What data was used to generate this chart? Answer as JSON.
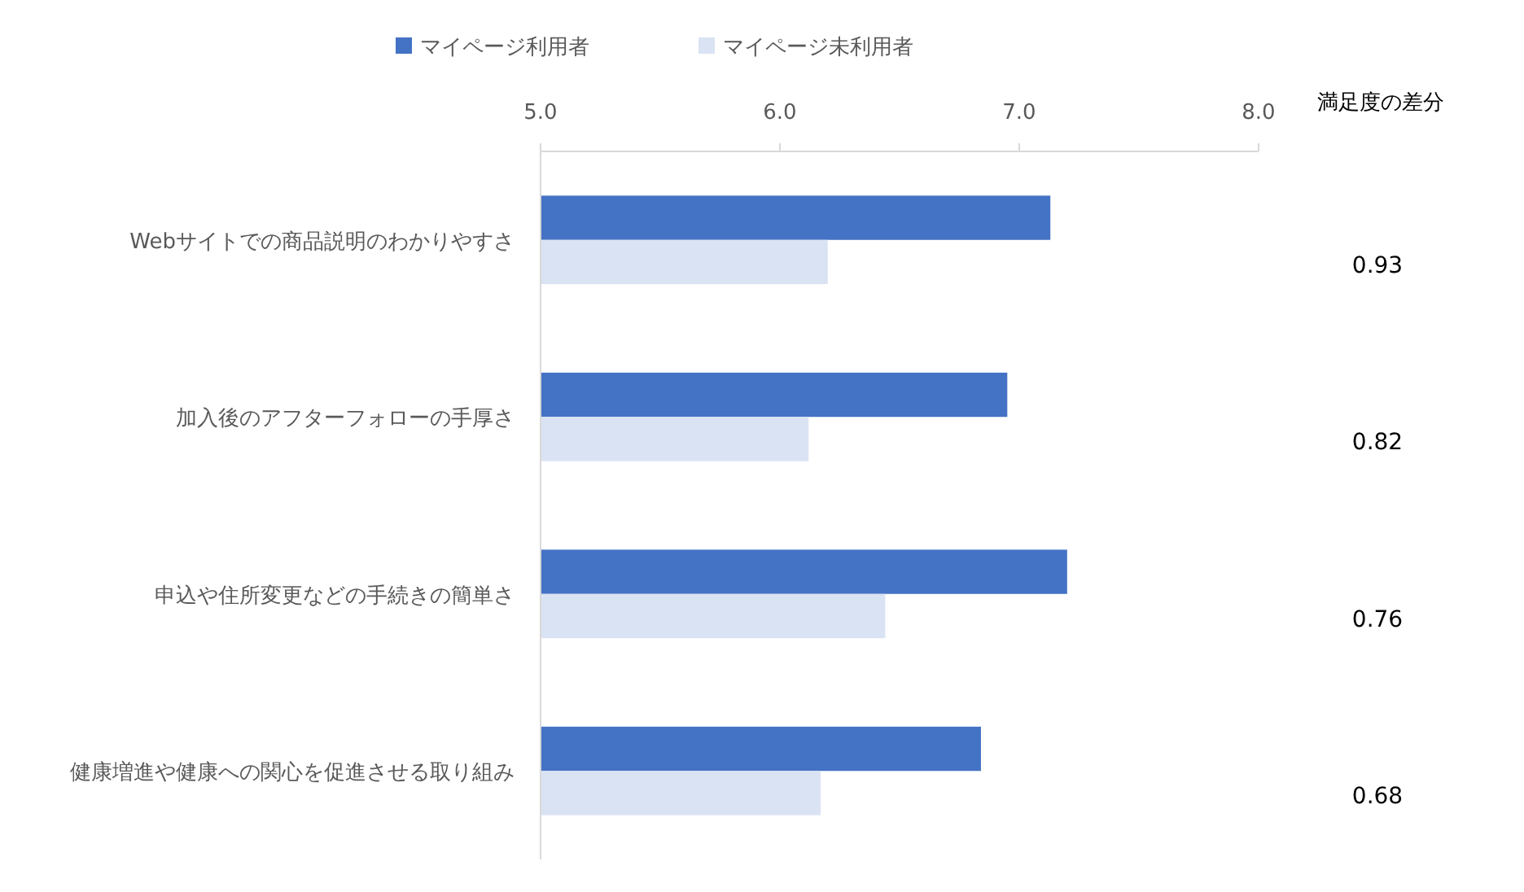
{
  "chart_data": {
    "type": "bar",
    "orientation": "horizontal",
    "categories": [
      "Webサイトでの商品説明のわかりやすさ",
      "加入後のアフターフォローの手厚さ",
      "申込や住所変更などの手続きの簡単さ",
      "健康増進や健康への関心を促進させる取り組み"
    ],
    "series": [
      {
        "name": "マイページ利用者",
        "color": "#4472c4",
        "values": [
          7.13,
          6.95,
          7.2,
          6.84
        ]
      },
      {
        "name": "マイページ未利用者",
        "color": "#dae3f3",
        "values": [
          6.2,
          6.12,
          6.44,
          6.17
        ]
      }
    ],
    "xlim": [
      5,
      8
    ],
    "xticks": [
      {
        "value": 5,
        "label": "5.0"
      },
      {
        "value": 6,
        "label": "6.0"
      },
      {
        "value": 7,
        "label": "7.0"
      },
      {
        "value": 8,
        "label": "8.0"
      }
    ],
    "legend": "top",
    "annotations": [
      "満足度の差分",
      "0.93",
      "0.82",
      "0.76",
      "0.68"
    ]
  }
}
